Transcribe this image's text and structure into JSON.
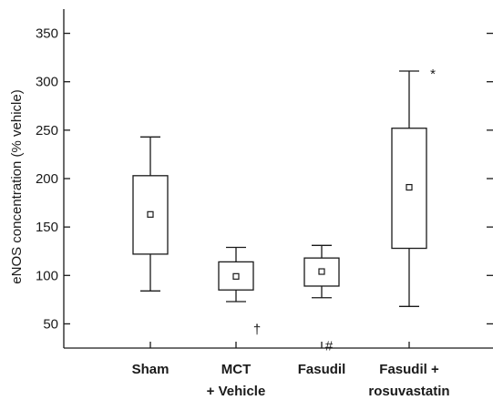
{
  "chart_data": {
    "type": "box",
    "ylabel": "eNOS concentration (% vehicle)",
    "xlabel": "",
    "ylim": [
      25,
      375
    ],
    "yticks": [
      50,
      100,
      150,
      200,
      250,
      300,
      350
    ],
    "ytick_labels": [
      "50",
      "100",
      "150",
      "200",
      "250",
      "300",
      "350"
    ],
    "grid": false,
    "categories": [
      [
        "Sham"
      ],
      [
        "MCT",
        "+ Vehicle"
      ],
      [
        "Fasudil"
      ],
      [
        "Fasudil +",
        "rosuvastatin"
      ]
    ],
    "boxes": [
      {
        "whisker_low": 84,
        "q1": 122,
        "center": 163,
        "q3": 203,
        "whisker_high": 243,
        "annotation": ""
      },
      {
        "whisker_low": 73,
        "q1": 85,
        "center": 99,
        "q3": 114,
        "whisker_high": 129,
        "annotation": "†"
      },
      {
        "whisker_low": 77,
        "q1": 89,
        "center": 104,
        "q3": 118,
        "whisker_high": 131,
        "annotation": "#"
      },
      {
        "whisker_low": 68,
        "q1": 128,
        "center": 191,
        "q3": 252,
        "whisker_high": 311,
        "annotation": "*"
      }
    ],
    "colors": {
      "stroke": "#1a1a1a",
      "fill": "#ffffff"
    }
  }
}
